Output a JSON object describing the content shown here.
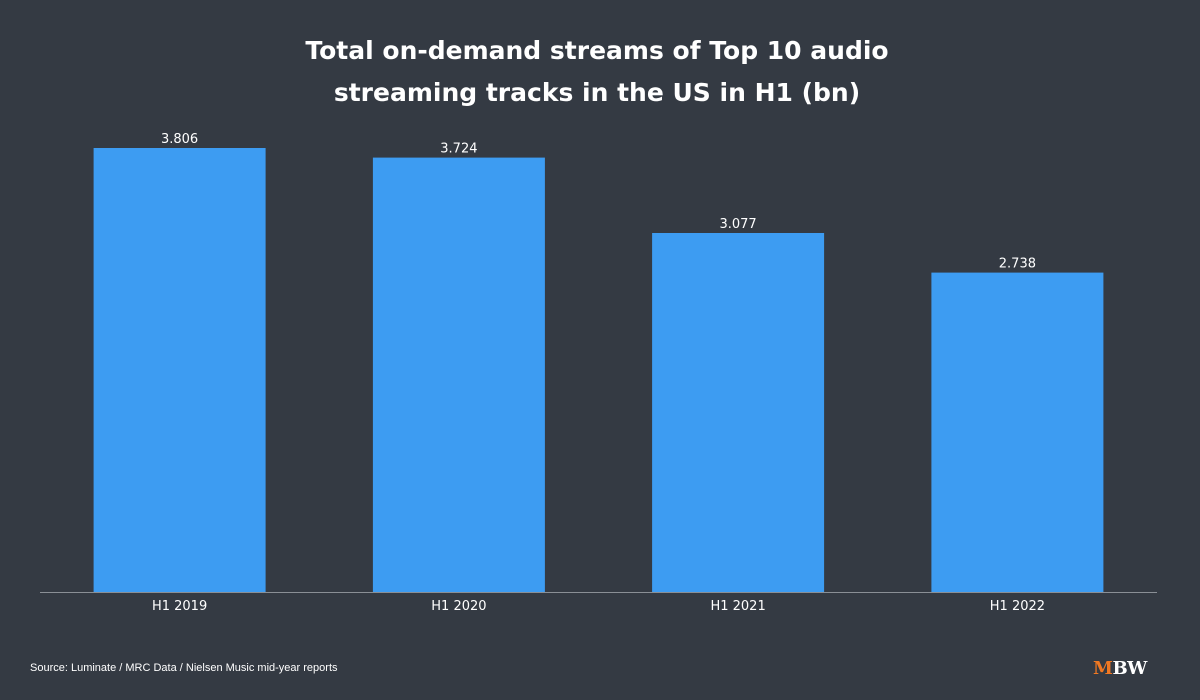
{
  "chart_data": {
    "type": "bar",
    "title_lines": [
      "Total on-demand streams of Top 10 audio",
      "streaming tracks in the US in H1 (bn)"
    ],
    "categories": [
      "H1 2019",
      "H1 2020",
      "H1 2021",
      "H1 2022"
    ],
    "values": [
      3.806,
      3.724,
      3.077,
      2.738
    ],
    "value_labels": [
      "3.806",
      "3.724",
      "3.077",
      "2.738"
    ],
    "ylim": [
      0,
      3.806
    ],
    "grid": false,
    "legend": "none",
    "bar_color": "#3d9cf2",
    "background_color": "#343a43",
    "baseline_color": "#8a8f96"
  },
  "source": "Source: Luminate / MRC Data / Nielsen Music mid-year reports",
  "logo": {
    "text_accent": "M",
    "text_main": "BW",
    "accent_color": "#f07822"
  }
}
